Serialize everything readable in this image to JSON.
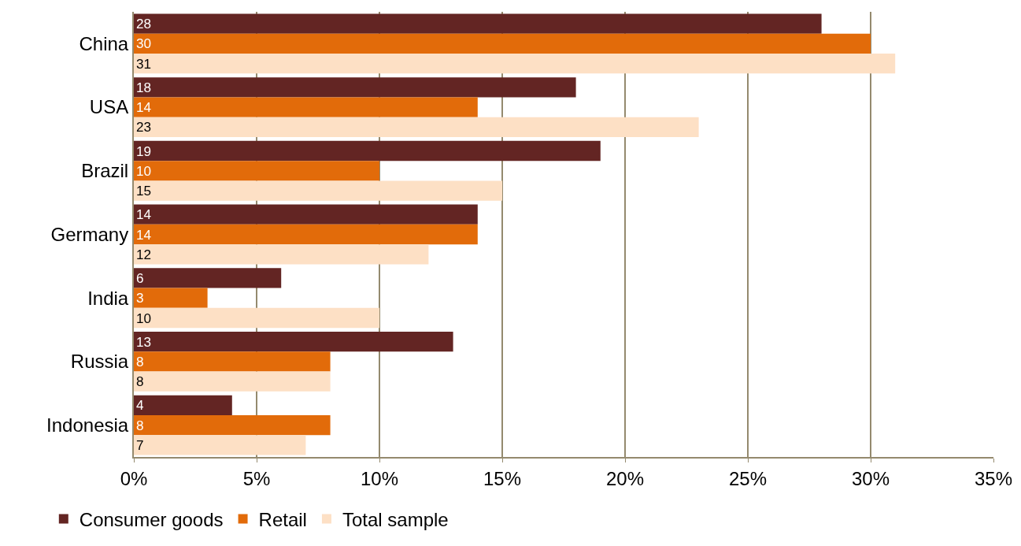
{
  "chart_data": {
    "type": "bar",
    "orientation": "horizontal",
    "categories": [
      "China",
      "USA",
      "Brazil",
      "Germany",
      "India",
      "Russia",
      "Indonesia"
    ],
    "series": [
      {
        "name": "Consumer goods",
        "color": "#632523",
        "values": [
          28,
          18,
          19,
          14,
          6,
          13,
          4
        ]
      },
      {
        "name": "Retail",
        "color": "#e26b0a",
        "values": [
          30,
          14,
          10,
          14,
          3,
          8,
          8
        ]
      },
      {
        "name": "Total sample",
        "color": "#fde0c5",
        "values": [
          31,
          23,
          15,
          12,
          10,
          8,
          7
        ]
      }
    ],
    "xlim": [
      0,
      35
    ],
    "xticks": [
      {
        "value": 0,
        "label": "0%"
      },
      {
        "value": 5,
        "label": "5%"
      },
      {
        "value": 10,
        "label": "10%"
      },
      {
        "value": 15,
        "label": "15%"
      },
      {
        "value": 20,
        "label": "20%"
      },
      {
        "value": 25,
        "label": "25%"
      },
      {
        "value": 30,
        "label": "30%"
      },
      {
        "value": 35,
        "label": "35%"
      }
    ],
    "grid": "x",
    "legend": "bottom",
    "data_labels": true
  }
}
